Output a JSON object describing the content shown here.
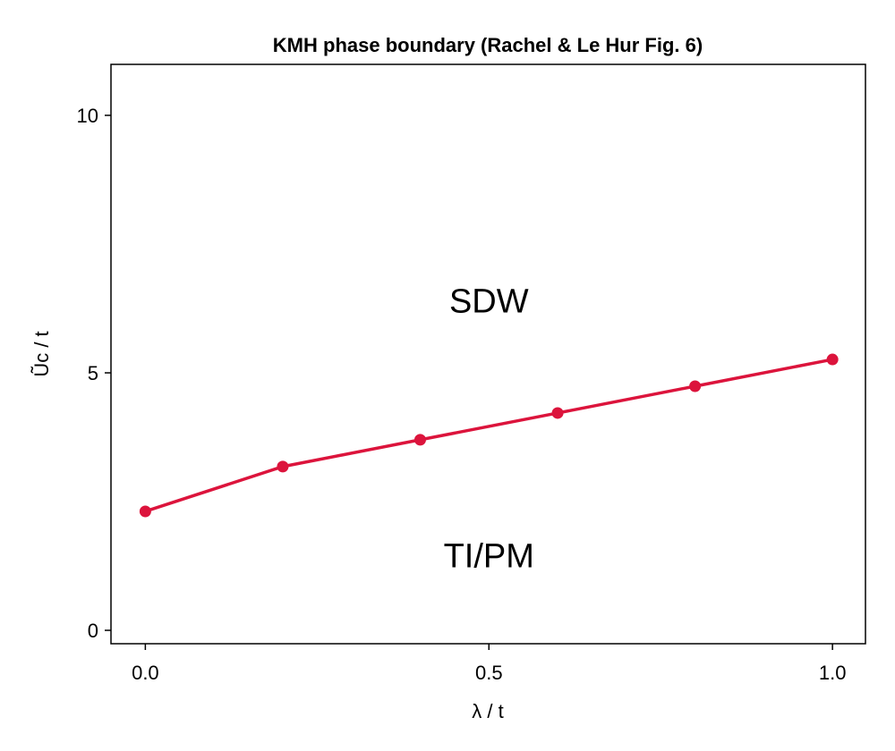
{
  "chart_data": {
    "type": "line",
    "title": "KMH phase boundary (Rachel & Le Hur Fig. 6)",
    "xlabel": "λ / t",
    "ylabel": "Ũc / t",
    "xlim": [
      -0.05,
      1.048
    ],
    "ylim": [
      -0.26,
      10.99
    ],
    "xticks": [
      0,
      0.5,
      1
    ],
    "xtick_labels": [
      "0.0",
      "0.5",
      "1.0"
    ],
    "yticks": [
      0,
      5,
      10
    ],
    "ytick_labels": [
      "0",
      "5",
      "10"
    ],
    "grid": false,
    "series": [
      {
        "name": "phase boundary",
        "color": "#dc143c",
        "x": [
          0.0,
          0.2,
          0.4,
          0.6,
          0.8,
          1.0
        ],
        "y": [
          2.31,
          3.18,
          3.7,
          4.22,
          4.74,
          5.26
        ]
      }
    ],
    "annotations": [
      {
        "text": "SDW",
        "x": 0.5,
        "y": 6.4
      },
      {
        "text": "TI/PM",
        "x": 0.5,
        "y": 1.45
      }
    ]
  }
}
